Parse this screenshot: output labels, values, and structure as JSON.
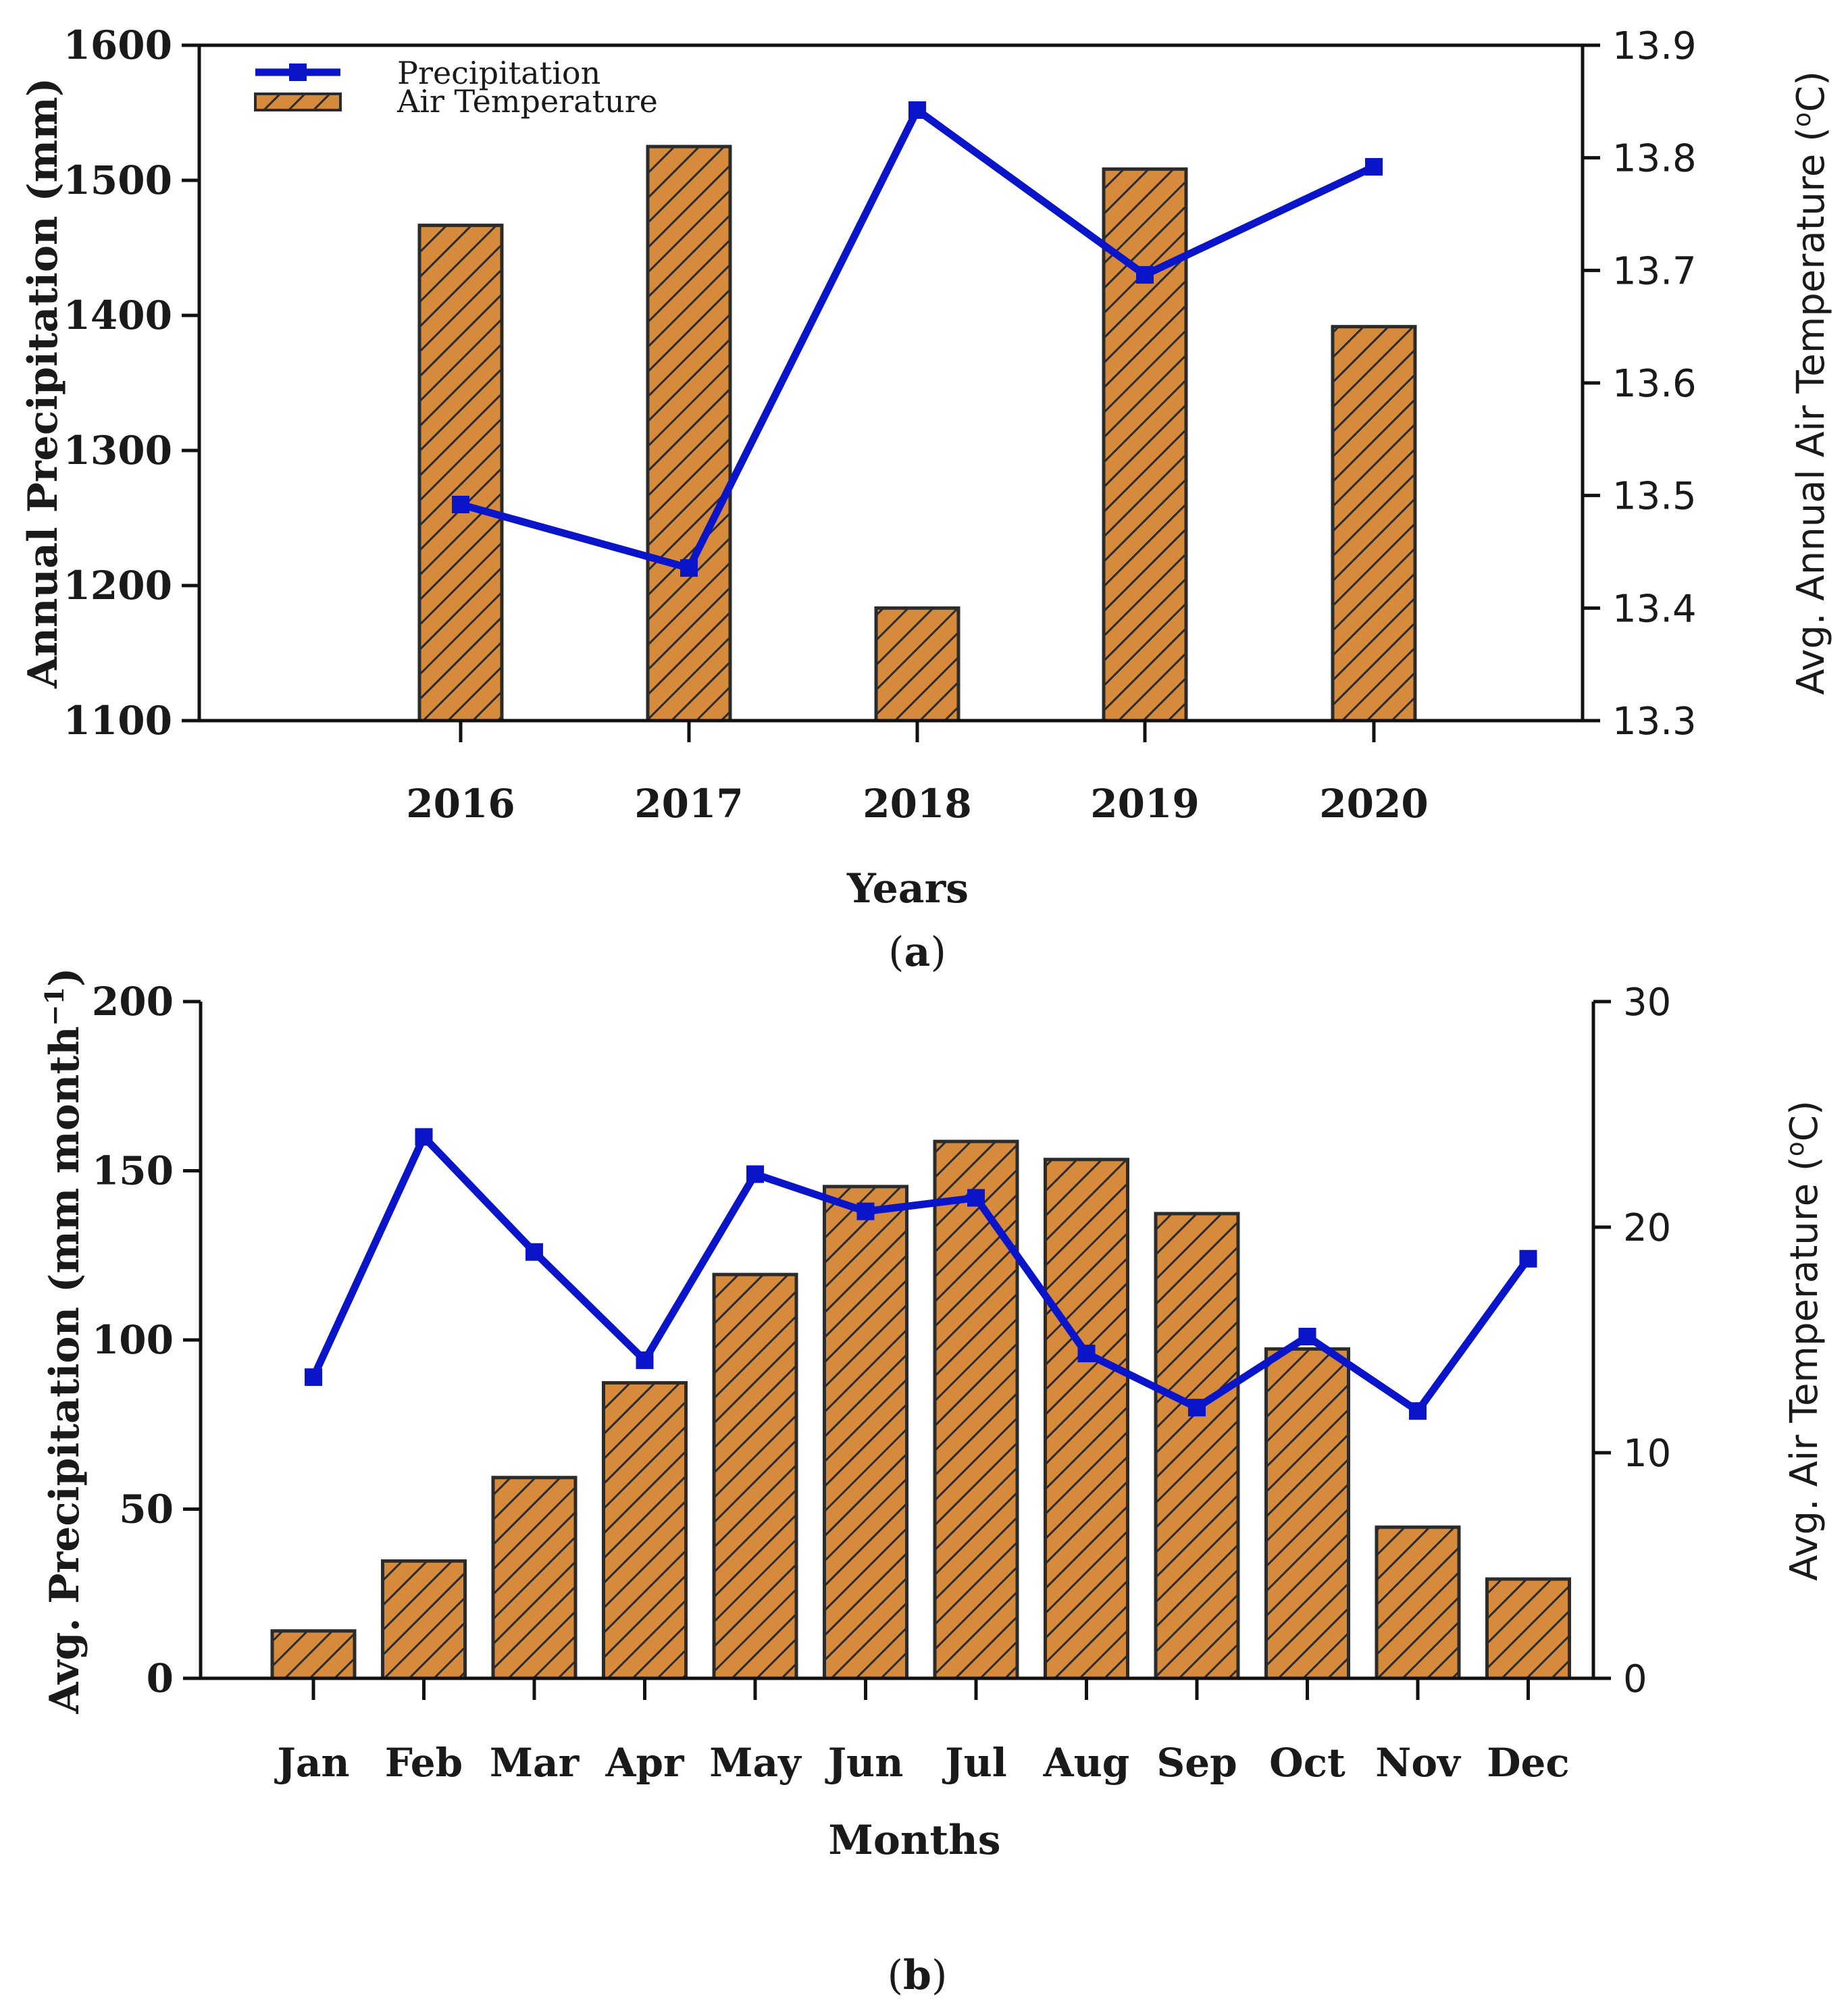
{
  "colors": {
    "bar_fill": "#d68a3c",
    "hatch": "#2b2b2b",
    "line": "#0a14c8",
    "axis": "#111111"
  },
  "chart_data": [
    {
      "panel": "a",
      "type": "bar+line",
      "caption_letter": "a",
      "categories": [
        "2016",
        "2017",
        "2018",
        "2019",
        "2020"
      ],
      "xlabel": "Years",
      "ylabel_left": "Annual Precipitation (mm)",
      "ylabel_right": "Avg. Annual Air Temperature (",
      "ylabel_right_sup": "o",
      "ylabel_right_suffix": "C)",
      "left_ylim": [
        1100,
        1600
      ],
      "left_ticks": [
        "1100",
        "1200",
        "1300",
        "1400",
        "1500",
        "1600"
      ],
      "right_ylim": [
        13.3,
        13.9
      ],
      "right_ticks": [
        "13.3",
        "13.4",
        "13.5",
        "13.6",
        "13.7",
        "13.8",
        "13.9"
      ],
      "legend": {
        "line_label": "Precipitation",
        "bar_label": "Air Temperature",
        "position": "top-left"
      },
      "series": [
        {
          "name": "Air Temperature",
          "kind": "bar",
          "axis": "right",
          "values": [
            13.74,
            13.81,
            13.4,
            13.79,
            13.65
          ]
        },
        {
          "name": "Precipitation",
          "kind": "line",
          "axis": "left",
          "values": [
            1260,
            1213,
            1552,
            1430,
            1510
          ]
        }
      ]
    },
    {
      "panel": "b",
      "type": "bar+line",
      "caption_letter": "b",
      "categories": [
        "Jan",
        "Feb",
        "Mar",
        "Apr",
        "May",
        "Jun",
        "Jul",
        "Aug",
        "Sep",
        "Oct",
        "Nov",
        "Dec"
      ],
      "xlabel": "Months",
      "ylabel_left": "Avg. Precipitation (mm month",
      "ylabel_left_sup": "−1",
      "ylabel_left_suffix": ")",
      "ylabel_right": "Avg. Air Temperature (",
      "ylabel_right_sup": "o",
      "ylabel_right_suffix": "C)",
      "left_ylim": [
        0,
        200
      ],
      "left_ticks": [
        "0",
        "50",
        "100",
        "150",
        "200"
      ],
      "right_ylim": [
        0,
        30
      ],
      "right_ticks": [
        "0",
        "10",
        "20",
        "30"
      ],
      "series": [
        {
          "name": "Air Temperature",
          "kind": "bar",
          "axis": "right",
          "values": [
            2.1,
            5.2,
            8.9,
            13.1,
            17.9,
            21.8,
            23.8,
            23.0,
            20.6,
            14.6,
            6.7,
            4.4
          ]
        },
        {
          "name": "Precipitation",
          "kind": "line",
          "axis": "left",
          "values": [
            89,
            160,
            126,
            94,
            149,
            138,
            142,
            96,
            80,
            101,
            79,
            124
          ]
        }
      ]
    }
  ]
}
